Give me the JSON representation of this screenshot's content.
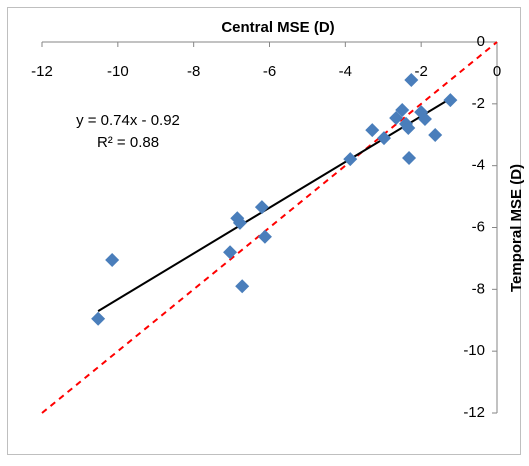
{
  "chart_data": {
    "type": "scatter",
    "x_label": "Central MSE (D)",
    "y_label": "Temporal MSE (D)",
    "xlim": [
      -12,
      0
    ],
    "ylim": [
      -12,
      0
    ],
    "xticks": [
      -12,
      -10,
      -8,
      -6,
      -4,
      -2,
      0
    ],
    "yticks": [
      0,
      -2,
      -4,
      -6,
      -8,
      -10,
      -12
    ],
    "grid": false,
    "series": [
      {
        "color": "#4a7ebb",
        "x": [
          -10.52,
          -10.15,
          -7.04,
          -6.85,
          -6.78,
          -6.2,
          -6.12,
          -6.72,
          -3.87,
          -3.29,
          -2.98,
          -2.26,
          -2.66,
          -2.5,
          -2.4,
          -2.34,
          -2.0,
          -1.9,
          -1.63,
          -1.23,
          -2.32
        ],
        "values": [
          -8.95,
          -7.05,
          -6.8,
          -5.7,
          -5.85,
          -5.34,
          -6.3,
          -7.9,
          -3.79,
          -2.85,
          -3.11,
          -1.23,
          -2.46,
          -2.2,
          -2.65,
          -2.78,
          -2.27,
          -2.49,
          -3.01,
          -1.88,
          -3.75
        ]
      }
    ],
    "trendline": {
      "slope": 0.74,
      "intercept": -0.92,
      "color": "#000000"
    },
    "reference_line": {
      "slope": 1,
      "intercept": 0,
      "color": "#ff0000"
    },
    "annotations": [
      "y = 0.74x - 0.92",
      "R² = 0.88"
    ]
  }
}
